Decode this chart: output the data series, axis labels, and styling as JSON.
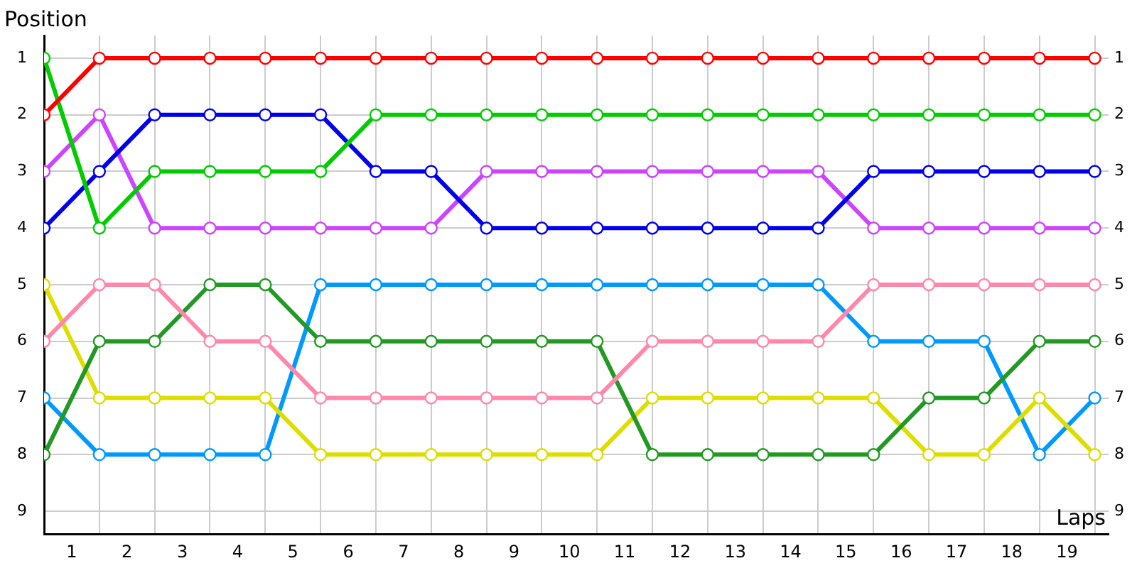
{
  "chart_data": {
    "type": "line",
    "xlabel": "Laps",
    "ylabel": "Position",
    "x": [
      0,
      1,
      2,
      3,
      4,
      5,
      6,
      7,
      8,
      9,
      10,
      11,
      12,
      13,
      14,
      15,
      16,
      17,
      18,
      19
    ],
    "xlim": [
      0,
      19.25
    ],
    "xticks": [
      {
        "value": 0,
        "label": null
      },
      {
        "value": 0.5,
        "label": "1"
      },
      {
        "value": 1,
        "label": null
      },
      {
        "value": 1.5,
        "label": "2"
      },
      {
        "value": 2,
        "label": null
      },
      {
        "value": 2.5,
        "label": "3"
      },
      {
        "value": 3,
        "label": null
      },
      {
        "value": 3.5,
        "label": "4"
      },
      {
        "value": 4,
        "label": null
      },
      {
        "value": 4.5,
        "label": "5"
      },
      {
        "value": 5,
        "label": null
      },
      {
        "value": 5.5,
        "label": "6"
      },
      {
        "value": 6,
        "label": null
      },
      {
        "value": 6.5,
        "label": "7"
      },
      {
        "value": 7,
        "label": null
      },
      {
        "value": 7.5,
        "label": "8"
      },
      {
        "value": 8,
        "label": null
      },
      {
        "value": 8.5,
        "label": "9"
      },
      {
        "value": 9,
        "label": null
      },
      {
        "value": 9.5,
        "label": "10"
      },
      {
        "value": 10,
        "label": null
      },
      {
        "value": 10.5,
        "label": "11"
      },
      {
        "value": 11,
        "label": null
      },
      {
        "value": 11.5,
        "label": "12"
      },
      {
        "value": 12,
        "label": null
      },
      {
        "value": 12.5,
        "label": "13"
      },
      {
        "value": 13,
        "label": null
      },
      {
        "value": 13.5,
        "label": "14"
      },
      {
        "value": 14,
        "label": null
      },
      {
        "value": 14.5,
        "label": "15"
      },
      {
        "value": 15,
        "label": null
      },
      {
        "value": 15.5,
        "label": "16"
      },
      {
        "value": 16,
        "label": null
      },
      {
        "value": 16.5,
        "label": "17"
      },
      {
        "value": 17,
        "label": null
      },
      {
        "value": 17.5,
        "label": "18"
      },
      {
        "value": 18,
        "label": null
      },
      {
        "value": 18.5,
        "label": "19"
      },
      {
        "value": 19,
        "label": null
      }
    ],
    "ylim": [
      9.4,
      0.6
    ],
    "yticks": [
      1,
      2,
      3,
      4,
      5,
      6,
      7,
      8,
      9
    ],
    "y2lim": [
      9.4,
      0.6
    ],
    "y2ticks": [
      1,
      2,
      3,
      4,
      5,
      6,
      7,
      8,
      9
    ],
    "grid": true,
    "legend": false,
    "marker": "circle",
    "line_style": "solid",
    "series": [
      {
        "color": "#ff0000",
        "values": [
          2,
          1,
          1,
          1,
          1,
          1,
          1,
          1,
          1,
          1,
          1,
          1,
          1,
          1,
          1,
          1,
          1,
          1,
          1,
          1
        ]
      },
      {
        "color": "#00cc00",
        "values": [
          1,
          4,
          3,
          3,
          3,
          3,
          2,
          2,
          2,
          2,
          2,
          2,
          2,
          2,
          2,
          2,
          2,
          2,
          2,
          2
        ]
      },
      {
        "color": "#0000ee",
        "values": [
          4,
          3,
          2,
          2,
          2,
          2,
          3,
          3,
          4,
          4,
          4,
          4,
          4,
          4,
          4,
          3,
          3,
          3,
          3,
          3
        ]
      },
      {
        "color": "#cc44ff",
        "values": [
          3,
          2,
          4,
          4,
          4,
          4,
          4,
          4,
          3,
          3,
          3,
          3,
          3,
          3,
          3,
          4,
          4,
          4,
          4,
          4
        ]
      },
      {
        "color": "#ff88aa",
        "values": [
          6,
          5,
          5,
          6,
          6,
          7,
          7,
          7,
          7,
          7,
          7,
          6,
          6,
          6,
          6,
          5,
          5,
          5,
          5,
          5
        ]
      },
      {
        "color": "#229922",
        "values": [
          8,
          6,
          6,
          5,
          5,
          6,
          6,
          6,
          6,
          6,
          6,
          8,
          8,
          8,
          8,
          8,
          7,
          7,
          6,
          6
        ]
      },
      {
        "color": "#dddd00",
        "values": [
          5,
          7,
          7,
          7,
          7,
          8,
          8,
          8,
          8,
          8,
          8,
          7,
          7,
          7,
          7,
          7,
          8,
          8,
          7,
          8
        ]
      },
      {
        "color": "#0099ff",
        "values": [
          7,
          8,
          8,
          8,
          8,
          5,
          5,
          5,
          5,
          5,
          5,
          5,
          5,
          5,
          5,
          6,
          6,
          6,
          8,
          7
        ]
      }
    ]
  }
}
